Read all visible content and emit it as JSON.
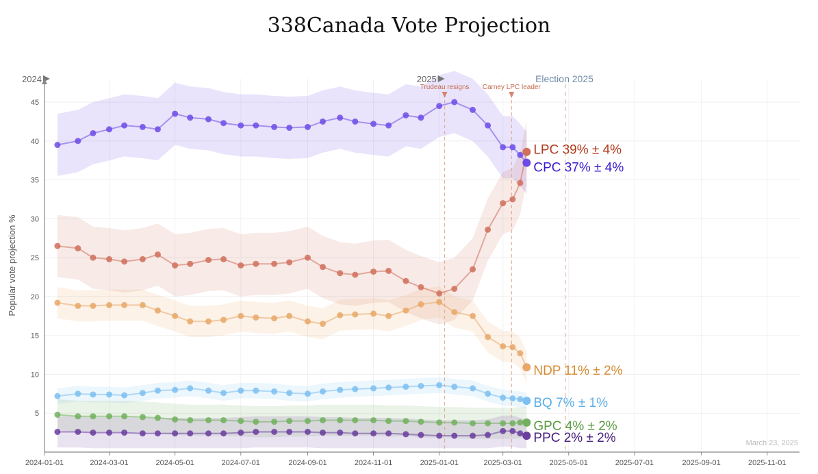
{
  "chart_data": {
    "type": "line",
    "title": "338Canada Vote Projection",
    "ylabel": "Popular vote projection %",
    "xlabel": "",
    "xlim": [
      "2024-01-01",
      "2025-12-01"
    ],
    "ylim": [
      0,
      48
    ],
    "y_ticks": [
      "5",
      "10",
      "15",
      "20",
      "25",
      "30",
      "35",
      "40",
      "45"
    ],
    "x_ticks": [
      "2024-01-01",
      "2024-03-01",
      "2024-05-01",
      "2024-07-01",
      "2024-09-01",
      "2024-11-01",
      "2025-01-01",
      "2025-03-01",
      "2025-05-01",
      "2025-07-01",
      "2025-09-01",
      "2025-11-01"
    ],
    "grid": true,
    "legend": "inline labels at series end",
    "year_markers": [
      {
        "label": "2024",
        "date": "2024-01-01"
      },
      {
        "label": "2025",
        "date": "2025-01-01"
      }
    ],
    "annotations": [
      {
        "label": "Trudeau resigns",
        "date": "2025-01-06"
      },
      {
        "label": "Carney LPC leader",
        "date": "2025-03-09"
      }
    ],
    "election_marker": {
      "label": "Election 2025",
      "date": "2025-04-28"
    },
    "date_stamp": "March 23, 2025",
    "series": [
      {
        "name": "CPC",
        "end_label": "CPC 37% ± 4%",
        "color": "#6d4ce6",
        "band": 4,
        "x": [
          "2024-01-13",
          "2024-02-01",
          "2024-02-15",
          "2024-03-01",
          "2024-03-15",
          "2024-04-01",
          "2024-04-15",
          "2024-05-01",
          "2024-05-15",
          "2024-06-01",
          "2024-06-15",
          "2024-07-01",
          "2024-07-15",
          "2024-08-01",
          "2024-08-15",
          "2024-09-01",
          "2024-09-15",
          "2024-10-01",
          "2024-10-15",
          "2024-11-01",
          "2024-11-15",
          "2024-12-01",
          "2024-12-15",
          "2025-01-01",
          "2025-01-15",
          "2025-02-01",
          "2025-02-15",
          "2025-03-01",
          "2025-03-10",
          "2025-03-17",
          "2025-03-23"
        ],
        "values": [
          39.5,
          40.0,
          41.0,
          41.5,
          42.0,
          41.8,
          41.5,
          43.5,
          43.0,
          42.8,
          42.3,
          42.0,
          42.0,
          41.8,
          41.7,
          41.8,
          42.5,
          43.0,
          42.5,
          42.2,
          42.0,
          43.3,
          43.0,
          44.5,
          45.0,
          44.0,
          42.0,
          39.2,
          39.2,
          38.2,
          37.2
        ]
      },
      {
        "name": "LPC",
        "end_label": "LPC 39% ± 4%",
        "color": "#d0705c",
        "band": 4,
        "x": [
          "2024-01-13",
          "2024-02-01",
          "2024-02-15",
          "2024-03-01",
          "2024-03-15",
          "2024-04-01",
          "2024-04-15",
          "2024-05-01",
          "2024-05-15",
          "2024-06-01",
          "2024-06-15",
          "2024-07-01",
          "2024-07-15",
          "2024-08-01",
          "2024-08-15",
          "2024-09-01",
          "2024-09-15",
          "2024-10-01",
          "2024-10-15",
          "2024-11-01",
          "2024-11-15",
          "2024-12-01",
          "2024-12-15",
          "2025-01-01",
          "2025-01-15",
          "2025-02-01",
          "2025-02-15",
          "2025-03-01",
          "2025-03-10",
          "2025-03-17",
          "2025-03-23"
        ],
        "values": [
          26.5,
          26.2,
          25.0,
          24.8,
          24.5,
          24.8,
          25.4,
          24.0,
          24.2,
          24.7,
          24.8,
          24.0,
          24.2,
          24.2,
          24.4,
          25.0,
          23.8,
          23.0,
          22.8,
          23.2,
          23.3,
          22.0,
          21.2,
          20.4,
          21.0,
          23.5,
          28.6,
          32.0,
          32.5,
          34.6,
          38.6
        ]
      },
      {
        "name": "NDP",
        "end_label": "NDP 11% ± 2%",
        "color": "#e8a868",
        "band": 2,
        "x": [
          "2024-01-13",
          "2024-02-01",
          "2024-02-15",
          "2024-03-01",
          "2024-03-15",
          "2024-04-01",
          "2024-04-15",
          "2024-05-01",
          "2024-05-15",
          "2024-06-01",
          "2024-06-15",
          "2024-07-01",
          "2024-07-15",
          "2024-08-01",
          "2024-08-15",
          "2024-09-01",
          "2024-09-15",
          "2024-10-01",
          "2024-10-15",
          "2024-11-01",
          "2024-11-15",
          "2024-12-01",
          "2024-12-15",
          "2025-01-01",
          "2025-01-15",
          "2025-02-01",
          "2025-02-15",
          "2025-03-01",
          "2025-03-10",
          "2025-03-17",
          "2025-03-23"
        ],
        "values": [
          19.2,
          18.8,
          18.8,
          18.9,
          18.9,
          18.9,
          18.2,
          17.5,
          16.8,
          16.8,
          17.0,
          17.5,
          17.3,
          17.2,
          17.5,
          16.8,
          16.5,
          17.6,
          17.7,
          17.8,
          17.5,
          18.2,
          19.0,
          19.3,
          18.0,
          17.5,
          14.8,
          13.6,
          13.5,
          12.7,
          10.9
        ]
      },
      {
        "name": "BQ",
        "end_label": "BQ 7% ± 1%",
        "color": "#7cc0f0",
        "band": 1,
        "x": [
          "2024-01-13",
          "2024-02-01",
          "2024-02-15",
          "2024-03-01",
          "2024-03-15",
          "2024-04-01",
          "2024-04-15",
          "2024-05-01",
          "2024-05-15",
          "2024-06-01",
          "2024-06-15",
          "2024-07-01",
          "2024-07-15",
          "2024-08-01",
          "2024-08-15",
          "2024-09-01",
          "2024-09-15",
          "2024-10-01",
          "2024-10-15",
          "2024-11-01",
          "2024-11-15",
          "2024-12-01",
          "2024-12-15",
          "2025-01-01",
          "2025-01-15",
          "2025-02-01",
          "2025-02-15",
          "2025-03-01",
          "2025-03-10",
          "2025-03-17",
          "2025-03-23"
        ],
        "values": [
          7.2,
          7.5,
          7.4,
          7.4,
          7.3,
          7.6,
          7.9,
          8.0,
          8.2,
          7.9,
          7.6,
          7.9,
          7.9,
          7.8,
          7.6,
          7.5,
          7.8,
          8.0,
          8.1,
          8.2,
          8.3,
          8.4,
          8.5,
          8.6,
          8.4,
          8.2,
          7.5,
          7.0,
          6.9,
          6.8,
          6.6
        ]
      },
      {
        "name": "GPC",
        "end_label": "GPC 4% ± 2%",
        "color": "#72b05e",
        "band": 2,
        "x": [
          "2024-01-13",
          "2024-02-01",
          "2024-02-15",
          "2024-03-01",
          "2024-03-15",
          "2024-04-01",
          "2024-04-15",
          "2024-05-01",
          "2024-05-15",
          "2024-06-01",
          "2024-06-15",
          "2024-07-01",
          "2024-07-15",
          "2024-08-01",
          "2024-08-15",
          "2024-09-01",
          "2024-09-15",
          "2024-10-01",
          "2024-10-15",
          "2024-11-01",
          "2024-11-15",
          "2024-12-01",
          "2024-12-15",
          "2025-01-01",
          "2025-01-15",
          "2025-02-01",
          "2025-02-15",
          "2025-03-01",
          "2025-03-10",
          "2025-03-17",
          "2025-03-23"
        ],
        "values": [
          4.8,
          4.6,
          4.6,
          4.6,
          4.6,
          4.5,
          4.4,
          4.2,
          4.1,
          4.1,
          4.1,
          4.0,
          3.9,
          3.9,
          4.0,
          4.0,
          4.1,
          4.1,
          4.1,
          4.1,
          4.0,
          4.0,
          3.9,
          3.8,
          3.8,
          3.7,
          3.7,
          3.7,
          3.7,
          3.8,
          3.8
        ]
      },
      {
        "name": "PPC",
        "end_label": "PPC 2% ± 2%",
        "color": "#6a3e9e",
        "band": 2,
        "x": [
          "2024-01-13",
          "2024-02-01",
          "2024-02-15",
          "2024-03-01",
          "2024-03-15",
          "2024-04-01",
          "2024-04-15",
          "2024-05-01",
          "2024-05-15",
          "2024-06-01",
          "2024-06-15",
          "2024-07-01",
          "2024-07-15",
          "2024-08-01",
          "2024-08-15",
          "2024-09-01",
          "2024-09-15",
          "2024-10-01",
          "2024-10-15",
          "2024-11-01",
          "2024-11-15",
          "2024-12-01",
          "2024-12-15",
          "2025-01-01",
          "2025-01-15",
          "2025-02-01",
          "2025-02-15",
          "2025-03-01",
          "2025-03-10",
          "2025-03-17",
          "2025-03-23"
        ],
        "values": [
          2.6,
          2.6,
          2.5,
          2.5,
          2.5,
          2.4,
          2.4,
          2.4,
          2.4,
          2.4,
          2.4,
          2.5,
          2.6,
          2.6,
          2.6,
          2.6,
          2.5,
          2.5,
          2.4,
          2.4,
          2.4,
          2.3,
          2.2,
          2.1,
          2.1,
          2.1,
          2.2,
          2.7,
          2.7,
          2.4,
          2.1
        ]
      }
    ]
  }
}
